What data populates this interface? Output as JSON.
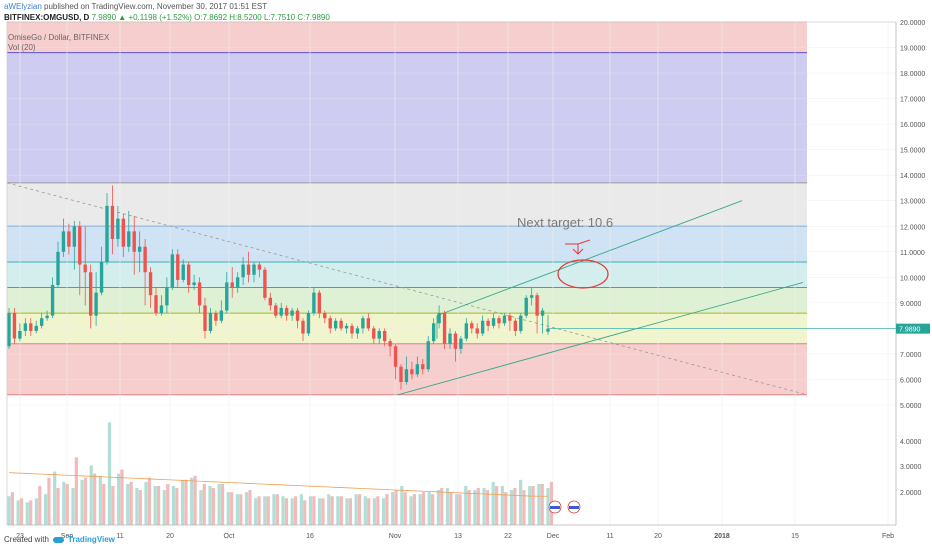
{
  "header": {
    "author": "aWElyzian",
    "published_text": "published on TradingView.com, November 30, 2017 01:51 EST",
    "symbol": "BITFINEX:OMGUSD, D",
    "last": "7.9890",
    "change": "+0.1198 (+1.52%)",
    "open": "O:7.8692",
    "high": "H:8.5200",
    "low": "L:7.7510",
    "close": "C:7.9890"
  },
  "legend": {
    "series": "OmiseGo / Dollar, BITFINEX",
    "volume": "Vol (20)"
  },
  "footer": {
    "created_with": "Created with",
    "brand": "TradingView"
  },
  "colors": {
    "up": "#26a69a",
    "down": "#ef5350",
    "band_red": "#f5c6c6",
    "band_violet": "#c5c3ee",
    "band_gray": "#e6e6e6",
    "band_blue": "#c8def2",
    "band_teal": "#cdeaea",
    "band_green": "#d9efce",
    "band_yellow": "#eef3c4",
    "trend_line": "#3aa88a",
    "annotation": "#e53935",
    "price_tag": "#26a69a"
  },
  "chart_data": {
    "type": "candlestick",
    "title": "OmiseGo / Dollar, BITFINEX",
    "ylim": [
      5.0,
      20.0
    ],
    "y_ticks": [
      "20.0000",
      "19.0000",
      "18.0000",
      "17.0000",
      "16.0000",
      "15.0000",
      "14.0000",
      "13.0000",
      "12.0000",
      "11.0000",
      "10.0000",
      "9.0000",
      "8.0000",
      "7.0000",
      "6.0000",
      "5.0000"
    ],
    "vol_ticks": [
      "5.0000",
      "4.0000",
      "3.0000",
      "2.0000"
    ],
    "x_ticks": [
      "23",
      "Sep",
      "11",
      "20",
      "Oct",
      "16",
      "Nov",
      "13",
      "22",
      "Dec",
      "11",
      "20",
      "2018",
      "15",
      "Feb"
    ],
    "last_price_label": "7.9890",
    "annotation": "Next target:  10.6",
    "fib_levels": [
      20.0,
      18.8,
      13.7,
      12.0,
      10.6,
      9.6,
      8.6,
      7.4,
      5.4
    ],
    "candles": [
      [
        7.3,
        8.6,
        8.8,
        7.2
      ],
      [
        8.6,
        7.6,
        8.8,
        7.4
      ],
      [
        7.6,
        7.9,
        8.2,
        7.5
      ],
      [
        7.9,
        8.2,
        8.4,
        7.7
      ],
      [
        8.2,
        7.9,
        8.4,
        7.7
      ],
      [
        7.9,
        8.1,
        8.3,
        7.8
      ],
      [
        8.1,
        8.4,
        8.6,
        8.0
      ],
      [
        8.4,
        8.5,
        8.7,
        8.3
      ],
      [
        8.5,
        9.7,
        10.0,
        8.4
      ],
      [
        9.7,
        11.0,
        11.4,
        9.6
      ],
      [
        11.0,
        11.8,
        12.3,
        10.8
      ],
      [
        11.8,
        11.2,
        12.1,
        10.9
      ],
      [
        11.2,
        12.0,
        12.2,
        10.3
      ],
      [
        12.0,
        10.5,
        12.2,
        9.3
      ],
      [
        10.5,
        10.2,
        12.0,
        8.9
      ],
      [
        10.2,
        8.5,
        10.5,
        8.0
      ],
      [
        8.5,
        9.4,
        10.2,
        8.1
      ],
      [
        9.4,
        10.6,
        11.2,
        9.3
      ],
      [
        10.6,
        12.8,
        13.3,
        10.5
      ],
      [
        12.8,
        11.5,
        13.6,
        10.9
      ],
      [
        11.5,
        12.3,
        12.8,
        11.2
      ],
      [
        12.3,
        11.2,
        12.5,
        10.8
      ],
      [
        11.2,
        11.8,
        12.6,
        11.0
      ],
      [
        11.8,
        11.0,
        12.4,
        10.1
      ],
      [
        11.0,
        11.2,
        11.8,
        10.2
      ],
      [
        11.2,
        10.2,
        11.5,
        8.9
      ],
      [
        10.2,
        9.3,
        10.4,
        8.8
      ],
      [
        9.3,
        8.6,
        9.6,
        8.5
      ],
      [
        8.6,
        8.9,
        9.3,
        8.5
      ],
      [
        8.9,
        9.6,
        10.0,
        8.6
      ],
      [
        9.6,
        10.9,
        11.1,
        9.5
      ],
      [
        10.9,
        9.9,
        11.1,
        9.6
      ],
      [
        9.9,
        10.5,
        10.7,
        9.8
      ],
      [
        10.5,
        9.7,
        10.6,
        9.4
      ],
      [
        9.7,
        9.8,
        10.1,
        9.5
      ],
      [
        9.8,
        8.9,
        10.0,
        8.6
      ],
      [
        8.9,
        7.9,
        9.2,
        7.6
      ],
      [
        7.9,
        8.6,
        8.8,
        7.8
      ],
      [
        8.6,
        8.3,
        8.7,
        8.1
      ],
      [
        8.3,
        8.7,
        9.1,
        8.2
      ],
      [
        8.7,
        9.8,
        10.2,
        8.6
      ],
      [
        9.8,
        9.6,
        10.4,
        9.2
      ],
      [
        9.6,
        10.0,
        10.2,
        9.4
      ],
      [
        10.0,
        10.5,
        10.8,
        9.7
      ],
      [
        10.5,
        10.1,
        11.0,
        9.8
      ],
      [
        10.1,
        10.5,
        10.6,
        9.8
      ],
      [
        10.5,
        10.3,
        10.6,
        10.0
      ],
      [
        10.3,
        9.2,
        10.4,
        9.1
      ],
      [
        9.2,
        8.9,
        9.4,
        8.7
      ],
      [
        8.9,
        8.5,
        9.0,
        8.4
      ],
      [
        8.5,
        8.8,
        9.0,
        8.4
      ],
      [
        8.8,
        8.5,
        8.9,
        8.3
      ],
      [
        8.5,
        8.7,
        8.8,
        8.3
      ],
      [
        8.7,
        8.3,
        8.8,
        8.0
      ],
      [
        8.3,
        7.8,
        8.4,
        7.5
      ],
      [
        7.8,
        8.6,
        8.7,
        7.7
      ],
      [
        8.6,
        9.4,
        9.6,
        8.5
      ],
      [
        9.4,
        8.6,
        9.5,
        8.4
      ],
      [
        8.6,
        8.4,
        8.7,
        8.2
      ],
      [
        8.4,
        8.0,
        8.5,
        7.8
      ],
      [
        8.0,
        8.3,
        8.4,
        7.9
      ],
      [
        8.3,
        8.0,
        8.4,
        7.9
      ],
      [
        8.0,
        8.1,
        8.2,
        7.8
      ],
      [
        8.1,
        7.8,
        8.2,
        7.6
      ],
      [
        7.8,
        8.0,
        8.1,
        7.6
      ],
      [
        8.0,
        8.4,
        8.5,
        7.8
      ],
      [
        8.4,
        8.0,
        8.6,
        7.9
      ],
      [
        8.0,
        7.6,
        8.1,
        7.4
      ],
      [
        7.6,
        7.9,
        8.0,
        7.4
      ],
      [
        7.9,
        7.5,
        8.0,
        7.3
      ],
      [
        7.5,
        7.3,
        7.6,
        6.9
      ],
      [
        7.3,
        6.5,
        7.4,
        6.0
      ],
      [
        6.5,
        5.9,
        6.6,
        5.6
      ],
      [
        5.9,
        6.4,
        6.9,
        5.8
      ],
      [
        6.4,
        6.2,
        6.7,
        6.0
      ],
      [
        6.2,
        6.6,
        6.9,
        6.1
      ],
      [
        6.6,
        6.4,
        6.8,
        6.2
      ],
      [
        6.4,
        7.5,
        7.7,
        6.3
      ],
      [
        7.5,
        8.2,
        8.4,
        7.4
      ],
      [
        8.2,
        8.6,
        8.9,
        8.0
      ],
      [
        8.6,
        7.4,
        8.7,
        7.2
      ],
      [
        7.4,
        7.8,
        8.0,
        7.2
      ],
      [
        7.8,
        7.2,
        7.9,
        6.7
      ],
      [
        7.2,
        7.6,
        7.7,
        7.0
      ],
      [
        7.6,
        8.2,
        8.4,
        7.5
      ],
      [
        8.2,
        8.0,
        8.3,
        7.8
      ],
      [
        8.0,
        7.8,
        8.2,
        7.6
      ],
      [
        7.8,
        8.3,
        8.5,
        7.7
      ],
      [
        8.3,
        8.1,
        8.4,
        7.9
      ],
      [
        8.1,
        8.4,
        8.6,
        8.0
      ],
      [
        8.4,
        8.2,
        8.5,
        8.0
      ],
      [
        8.2,
        8.5,
        8.6,
        8.1
      ],
      [
        8.5,
        8.3,
        8.6,
        7.9
      ],
      [
        8.3,
        7.9,
        8.4,
        7.7
      ],
      [
        7.9,
        8.5,
        8.6,
        7.8
      ],
      [
        8.5,
        9.2,
        9.3,
        8.4
      ],
      [
        9.2,
        9.3,
        9.6,
        8.9
      ],
      [
        9.3,
        8.5,
        9.4,
        7.8
      ],
      [
        8.5,
        8.7,
        8.8,
        7.8
      ],
      [
        7.87,
        7.99,
        8.52,
        7.75
      ]
    ],
    "volume_up": [
      1.4,
      1.2,
      1.1,
      1.3,
      1.5,
      2.6,
      2.1,
      1.8,
      2.2,
      2.9,
      2.4,
      5.0,
      2.5,
      2.0,
      1.8,
      2.1,
      1.9,
      1.7,
      1.9,
      2.2,
      2.3,
      1.7,
      1.9,
      2.0,
      1.6,
      1.5,
      1.6,
      1.3,
      1.4,
      1.5,
      1.4,
      1.3,
      1.5,
      1.4,
      1.3,
      1.5,
      1.4,
      1.3,
      1.5,
      1.4,
      1.3,
      1.3,
      1.6,
      1.9,
      1.4,
      1.5,
      1.6,
      1.7,
      1.8,
      1.5,
      1.9,
      1.7,
      1.8,
      2.1,
      1.9,
      1.7,
      2.2,
      1.9,
      2.0,
      1.8
    ],
    "volume_down": [
      1.6,
      1.3,
      1.2,
      1.9,
      2.3,
      1.8,
      2.0,
      3.3,
      2.3,
      2.5,
      2.0,
      1.9,
      2.7,
      2.1,
      1.7,
      2.3,
      1.9,
      2.0,
      1.8,
      2.2,
      2.4,
      2.0,
      1.8,
      2.0,
      1.6,
      1.5,
      1.7,
      1.4,
      1.4,
      1.5,
      1.3,
      1.4,
      1.2,
      1.4,
      1.3,
      1.4,
      1.4,
      1.3,
      1.5,
      1.3,
      1.4,
      1.5,
      1.7,
      1.6,
      1.5,
      1.6,
      1.5,
      1.8,
      1.6,
      1.5,
      1.7,
      1.8,
      1.7,
      1.9,
      1.6,
      1.8,
      1.7,
      1.9,
      2.0,
      2.1
    ]
  }
}
